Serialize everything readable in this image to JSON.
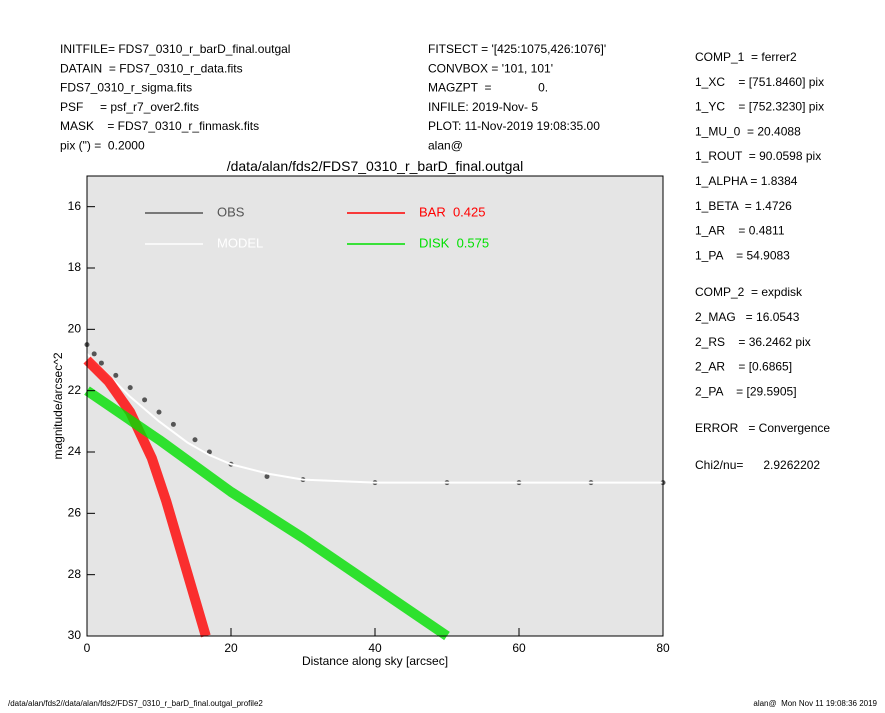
{
  "header": {
    "left": [
      "INITFILE= FDS7_0310_r_barD_final.outgal",
      "DATAIN  = FDS7_0310_r_data.fits",
      "FDS7_0310_r_sigma.fits",
      "PSF     = psf_r7_over2.fits",
      "MASK    = FDS7_0310_r_finmask.fits",
      "pix (\") =  0.2000"
    ],
    "middle": [
      "FITSECT = '[425:1075,426:1076]'",
      "CONVBOX = '101, 101'",
      "MAGZPT  =              0.",
      "INFILE: 2019-Nov- 5",
      "PLOT: 11-Nov-2019 19:08:35.00",
      "alan@"
    ]
  },
  "params": [
    [
      "COMP_1  = ferrer2",
      "1_XC    = [751.8460] pix",
      "1_YC    = [752.3230] pix",
      "1_MU_0  = 20.4088",
      "1_ROUT  = 90.0598 pix",
      "1_ALPHA = 1.8384",
      "1_BETA  = 1.4726",
      "1_AR    = 0.4811",
      "1_PA    = 54.9083"
    ],
    [
      "COMP_2  = expdisk",
      "2_MAG   = 16.0543",
      "2_RS    = 36.2462 pix",
      "2_AR    = [0.6865]",
      "2_PA    = [29.5905]"
    ],
    [
      "ERROR   = Convergence"
    ],
    [
      "Chi2/nu=      2.9262202"
    ]
  ],
  "footer": {
    "left": "/data/alan/fds2//data/alan/fds2/FDS7_0310_r_barD_final.outgal_profile2",
    "right": "alan@  Mon Nov 11 19:08:36 2019"
  },
  "chart_data": {
    "type": "scatter",
    "title": "/data/alan/fds2/FDS7_0310_r_barD_final.outgal",
    "xlabel": "Distance along sky [arcsec]",
    "ylabel": "magnitude/arcsec^2",
    "xlim": [
      0,
      80
    ],
    "xticks": [
      0,
      20,
      40,
      60,
      80
    ],
    "ylim": [
      30,
      15
    ],
    "yticks": [
      16,
      18,
      20,
      22,
      24,
      26,
      28,
      30
    ],
    "background": "#e5e5e5",
    "series": [
      {
        "name": "OBS",
        "color": "#555555",
        "marker": "points",
        "x": [
          0,
          1,
          2,
          4,
          6,
          8,
          10,
          12,
          15,
          17,
          20,
          25,
          30,
          40,
          50,
          60,
          70,
          80
        ],
        "values": [
          20.5,
          20.8,
          21.1,
          21.5,
          21.9,
          22.3,
          22.7,
          23.1,
          23.6,
          24.0,
          24.4,
          24.8,
          24.9,
          25.0,
          25.0,
          25.0,
          25.0,
          25.0
        ]
      },
      {
        "name": "MODEL",
        "color": "#ffffff",
        "marker": "line",
        "x": [
          0,
          3,
          6,
          10,
          14,
          17,
          20,
          25,
          30,
          40,
          60,
          80
        ],
        "values": [
          20.8,
          21.5,
          22.2,
          23.0,
          23.7,
          24.1,
          24.4,
          24.7,
          24.9,
          25.0,
          25.0,
          25.0
        ]
      },
      {
        "name": "BAR  0.425",
        "color": "#ff0000",
        "marker": "band",
        "x": [
          0,
          3,
          6,
          9,
          11,
          13,
          15,
          16.5
        ],
        "values": [
          21.0,
          21.7,
          22.7,
          24.2,
          25.6,
          27.2,
          28.8,
          30.0
        ]
      },
      {
        "name": "DISK  0.575",
        "color": "#00e000",
        "marker": "band",
        "x": [
          0,
          10,
          20,
          30,
          40,
          50
        ],
        "values": [
          22.0,
          23.6,
          25.3,
          26.8,
          28.4,
          30.0
        ]
      }
    ]
  }
}
